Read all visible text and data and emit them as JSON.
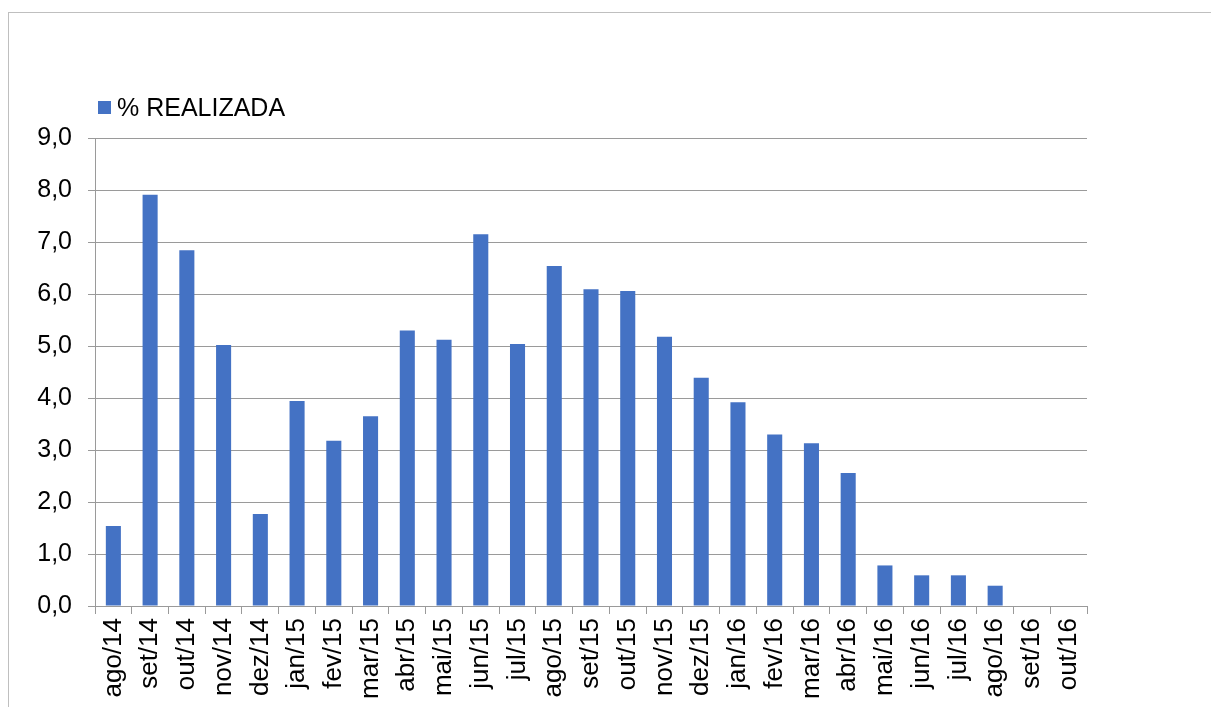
{
  "chart_data": {
    "type": "bar",
    "categories": [
      "ago/14",
      "set/14",
      "out/14",
      "nov/14",
      "dez/14",
      "jan/15",
      "fev/15",
      "mar/15",
      "abr/15",
      "mai/15",
      "jun/15",
      "jul/15",
      "ago/15",
      "set/15",
      "out/15",
      "nov/15",
      "dez/15",
      "jan/16",
      "fev/16",
      "mar/16",
      "abr/16",
      "mai/16",
      "jun/16",
      "jul/16",
      "ago/16",
      "set/16",
      "out/16"
    ],
    "series": [
      {
        "name": "% REALIZADA",
        "color": "#4472c4",
        "values": [
          1.54,
          7.91,
          6.84,
          5.02,
          1.77,
          3.94,
          3.18,
          3.65,
          5.3,
          5.12,
          7.15,
          5.04,
          6.54,
          6.09,
          6.06,
          5.18,
          4.39,
          3.92,
          3.3,
          3.13,
          2.56,
          0.78,
          0.59,
          0.59,
          0.39,
          null,
          null
        ]
      }
    ],
    "ylim": [
      0,
      9
    ],
    "yticks": [
      {
        "value": 0,
        "label": "0,0"
      },
      {
        "value": 1,
        "label": "1,0"
      },
      {
        "value": 2,
        "label": "2,0"
      },
      {
        "value": 3,
        "label": "3,0"
      },
      {
        "value": 4,
        "label": "4,0"
      },
      {
        "value": 5,
        "label": "5,0"
      },
      {
        "value": 6,
        "label": "6,0"
      },
      {
        "value": 7,
        "label": "7,0"
      },
      {
        "value": 8,
        "label": "8,0"
      },
      {
        "value": 9,
        "label": "9,0"
      }
    ],
    "grid": "y",
    "legend": "top left"
  }
}
